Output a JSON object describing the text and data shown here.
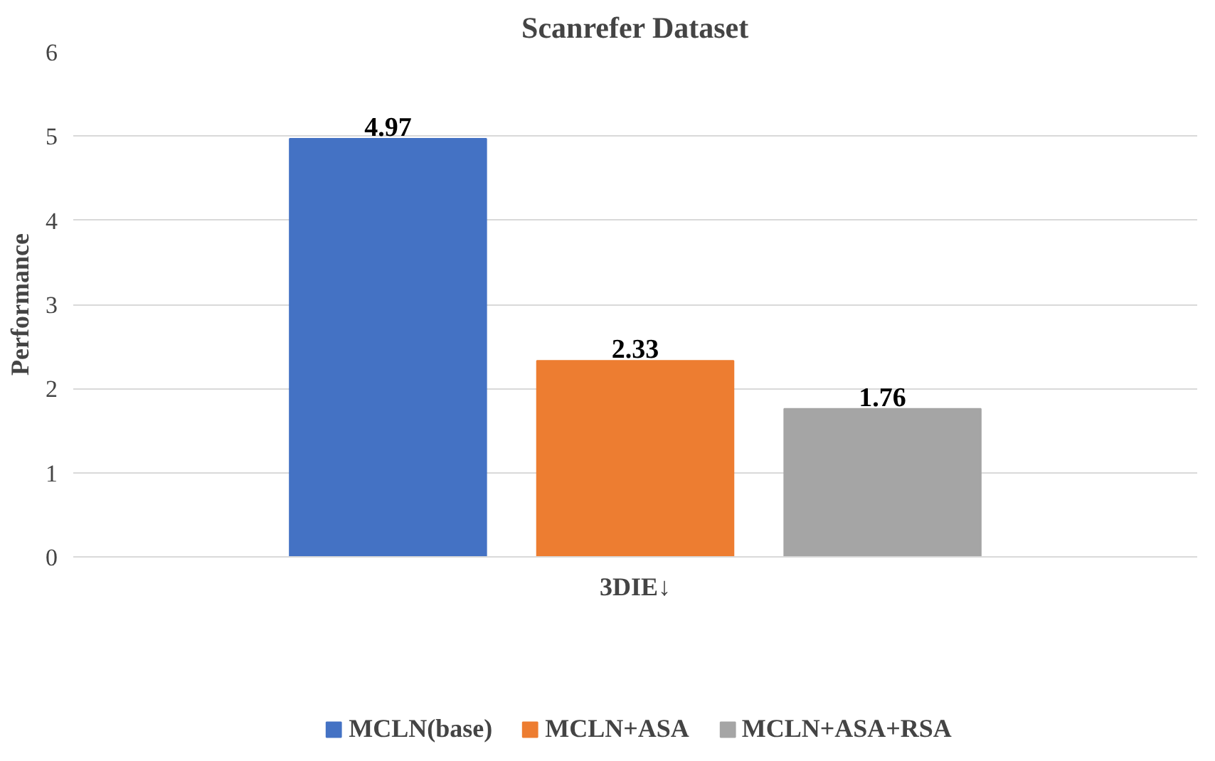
{
  "chart_data": {
    "type": "bar",
    "title": "Scanrefer Dataset",
    "ylabel": "Performance",
    "categories": [
      "3DIE↓"
    ],
    "series": [
      {
        "name": "MCLN(base)",
        "color": "#4472c4",
        "values": [
          4.97
        ]
      },
      {
        "name": "MCLN+ASA",
        "color": "#ed7d31",
        "values": [
          2.33
        ]
      },
      {
        "name": "MCLN+ASA+RSA",
        "color": "#a5a5a5",
        "values": [
          1.76
        ]
      }
    ],
    "ylim": [
      0,
      6
    ],
    "yticks": [
      0,
      1,
      2,
      3,
      4,
      5,
      6
    ],
    "grid": "y",
    "legend": "bottom",
    "data_labels": true
  }
}
